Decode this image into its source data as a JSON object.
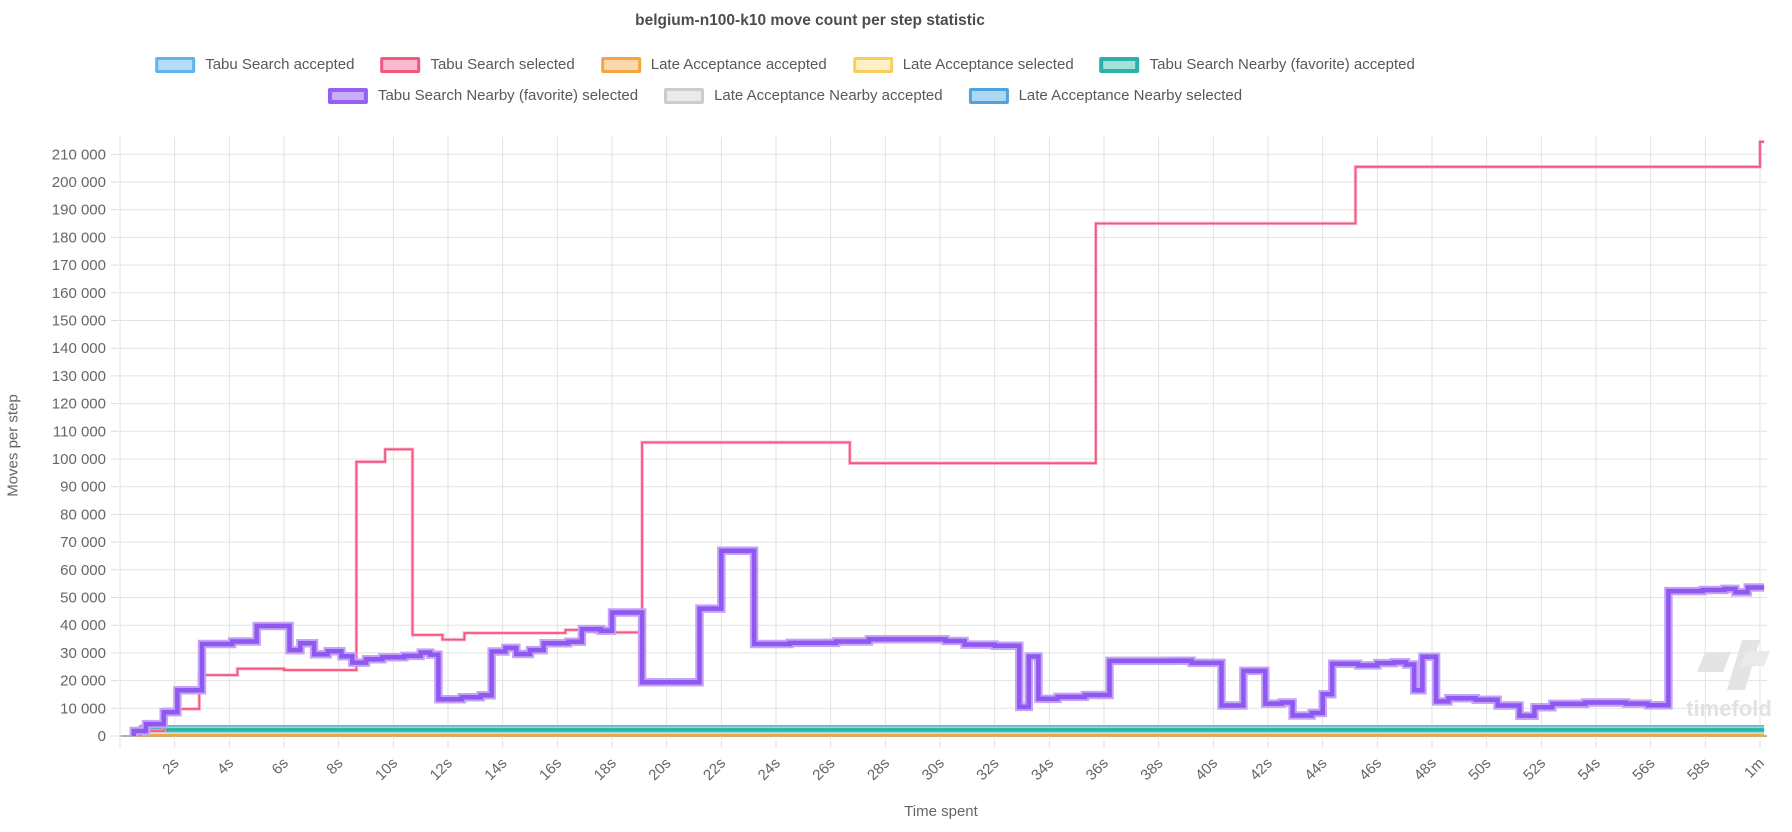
{
  "title": "belgium-n100-k10 move count per step statistic",
  "watermark": "timefold",
  "legend": [
    {
      "label": "Tabu Search accepted",
      "border": "#5fb4ea",
      "fill": "#b4dcf6",
      "lw": 3,
      "row": 1
    },
    {
      "label": "Tabu Search selected",
      "border": "#f4567e",
      "fill": "#f9bccf",
      "lw": 3,
      "row": 1
    },
    {
      "label": "Late Acceptance accepted",
      "border": "#f5a53f",
      "fill": "#fbd9ae",
      "lw": 3,
      "row": 1
    },
    {
      "label": "Late Acceptance selected",
      "border": "#f6cf5c",
      "fill": "#fdf0c6",
      "lw": 3,
      "row": 1
    },
    {
      "label": "Tabu Search Nearby (favorite) accepted",
      "border": "#2bb2a6",
      "fill": "#a3e2db",
      "lw": 4,
      "row": 1
    },
    {
      "label": "Tabu Search Nearby (favorite) selected",
      "border": "#9561f2",
      "fill": "#c9adf8",
      "lw": 4,
      "row": 2
    },
    {
      "label": "Late Acceptance Nearby accepted",
      "border": "#cccccc",
      "fill": "#ebebeb",
      "lw": 3,
      "row": 2
    },
    {
      "label": "Late Acceptance Nearby selected",
      "border": "#53a2e0",
      "fill": "#aed7f3",
      "lw": 3,
      "row": 2
    }
  ],
  "axes": {
    "y_title": "Moves per step",
    "x_title": "Time spent",
    "y_tick_values": [
      0,
      10000,
      20000,
      30000,
      40000,
      50000,
      60000,
      70000,
      80000,
      90000,
      100000,
      110000,
      120000,
      130000,
      140000,
      150000,
      160000,
      170000,
      180000,
      190000,
      200000,
      210000
    ],
    "y_tick_labels": [
      "0",
      "10 000",
      "20 000",
      "30 000",
      "40 000",
      "50 000",
      "60 000",
      "70 000",
      "80 000",
      "90 000",
      "100 000",
      "110 000",
      "120 000",
      "130 000",
      "140 000",
      "150 000",
      "160 000",
      "170 000",
      "180 000",
      "190 000",
      "200 000",
      "210 000"
    ],
    "x_tick_values": [
      2,
      4,
      6,
      8,
      10,
      12,
      14,
      16,
      18,
      20,
      22,
      24,
      26,
      28,
      30,
      32,
      34,
      36,
      38,
      40,
      42,
      44,
      46,
      48,
      50,
      52,
      54,
      56,
      58,
      60
    ],
    "x_tick_labels": [
      "2s",
      "4s",
      "6s",
      "8s",
      "10s",
      "12s",
      "14s",
      "16s",
      "18s",
      "20s",
      "22s",
      "24s",
      "26s",
      "28s",
      "30s",
      "32s",
      "34s",
      "36s",
      "38s",
      "40s",
      "42s",
      "44s",
      "46s",
      "48s",
      "50s",
      "52s",
      "54s",
      "56s",
      "58s",
      "1m"
    ]
  },
  "chart_data": {
    "type": "line",
    "step": true,
    "title": "belgium-n100-k10 move count per step statistic",
    "xlabel": "Time spent",
    "ylabel": "Moves per step",
    "x_unit": "seconds",
    "xlim": [
      0,
      60.15
    ],
    "ylim": [
      0,
      216000
    ],
    "grid": true,
    "legend_position": "top",
    "series": [
      {
        "name": "Late Acceptance Nearby accepted",
        "color": "#cfcfcf",
        "width": 2,
        "points": [
          [
            0.75,
            350
          ]
        ]
      },
      {
        "name": "Late Acceptance selected",
        "color": "#f6cf5c",
        "width": 2,
        "points": [
          [
            0.55,
            430
          ]
        ]
      },
      {
        "name": "Late Acceptance accepted",
        "color": "#f5a53f",
        "width": 2.5,
        "points": [
          [
            0.55,
            250
          ]
        ]
      },
      {
        "name": "Tabu Search accepted",
        "color": "#5fb4ea",
        "width": 2.5,
        "points": [
          [
            0.45,
            2000
          ]
        ]
      },
      {
        "name": "Late Acceptance Nearby selected",
        "color": "#53a2e0",
        "width": 3,
        "points": [
          [
            0.75,
            3400
          ]
        ]
      },
      {
        "name": "Tabu Search Nearby (favorite) accepted",
        "color": "#2bb2a6",
        "width": 3.5,
        "halo_color": "#8fd9d2",
        "halo_width": 7,
        "points": [
          [
            0.75,
            2200
          ]
        ]
      },
      {
        "name": "Tabu Search selected",
        "color": "#f4567e",
        "width": 1.8,
        "halo_color": "rgba(248,184,205,0.85)",
        "halo_width": 3.6,
        "points": [
          [
            0.55,
            1800
          ],
          [
            1.6,
            9800
          ],
          [
            2.9,
            22000
          ],
          [
            4.3,
            24300
          ],
          [
            6.0,
            23800
          ],
          [
            8.65,
            99000
          ],
          [
            9.7,
            103500
          ],
          [
            10.7,
            36500
          ],
          [
            11.8,
            34800
          ],
          [
            12.6,
            37200
          ],
          [
            16.3,
            38300
          ],
          [
            17.4,
            37400
          ],
          [
            19.1,
            106000
          ],
          [
            26.7,
            98500
          ],
          [
            35.7,
            185000
          ],
          [
            45.2,
            205500
          ],
          [
            60,
            214500
          ]
        ]
      },
      {
        "name": "Tabu Search Nearby (favorite) selected",
        "color": "#8f58f0",
        "width": 4.5,
        "halo_color": "#c3a4f7",
        "halo_width": 8.5,
        "points": [
          [
            0.5,
            1800
          ],
          [
            0.95,
            4300
          ],
          [
            1.6,
            8600
          ],
          [
            2.1,
            16500
          ],
          [
            3.0,
            33200
          ],
          [
            4.1,
            34100
          ],
          [
            5.0,
            39700
          ],
          [
            6.2,
            31000
          ],
          [
            6.6,
            33500
          ],
          [
            7.1,
            29500
          ],
          [
            7.6,
            30600
          ],
          [
            8.1,
            28800
          ],
          [
            8.5,
            26500
          ],
          [
            9.0,
            27700
          ],
          [
            9.6,
            28400
          ],
          [
            10.4,
            28900
          ],
          [
            11.0,
            30100
          ],
          [
            11.35,
            29400
          ],
          [
            11.65,
            13300
          ],
          [
            12.5,
            14000
          ],
          [
            13.2,
            14700
          ],
          [
            13.6,
            30500
          ],
          [
            14.1,
            31800
          ],
          [
            14.5,
            29600
          ],
          [
            15.0,
            31000
          ],
          [
            15.5,
            33500
          ],
          [
            16.4,
            34000
          ],
          [
            16.9,
            38600
          ],
          [
            17.6,
            38000
          ],
          [
            18.0,
            44600
          ],
          [
            19.1,
            19400
          ],
          [
            21.2,
            46000
          ],
          [
            22.0,
            66900
          ],
          [
            23.2,
            33200
          ],
          [
            24.5,
            33600
          ],
          [
            26.2,
            34100
          ],
          [
            27.4,
            34900
          ],
          [
            29.2,
            34900
          ],
          [
            30.2,
            34300
          ],
          [
            30.9,
            33000
          ],
          [
            32.0,
            32600
          ],
          [
            32.9,
            10500
          ],
          [
            33.25,
            28700
          ],
          [
            33.6,
            13400
          ],
          [
            34.3,
            14100
          ],
          [
            35.3,
            14800
          ],
          [
            36.2,
            27100
          ],
          [
            38.4,
            27200
          ],
          [
            39.2,
            26400
          ],
          [
            40.3,
            11000
          ],
          [
            41.1,
            23500
          ],
          [
            41.9,
            11700
          ],
          [
            42.5,
            12100
          ],
          [
            42.9,
            7400
          ],
          [
            43.6,
            8300
          ],
          [
            44.0,
            15100
          ],
          [
            44.35,
            26100
          ],
          [
            45.3,
            25500
          ],
          [
            46.0,
            26300
          ],
          [
            46.6,
            26600
          ],
          [
            47.05,
            25800
          ],
          [
            47.35,
            16500
          ],
          [
            47.65,
            28600
          ],
          [
            48.15,
            12500
          ],
          [
            48.6,
            13600
          ],
          [
            49.6,
            13100
          ],
          [
            50.4,
            11000
          ],
          [
            51.2,
            7300
          ],
          [
            51.75,
            10400
          ],
          [
            52.4,
            11600
          ],
          [
            53.6,
            12100
          ],
          [
            55.1,
            11700
          ],
          [
            55.9,
            11100
          ],
          [
            56.65,
            52300
          ],
          [
            57.9,
            52700
          ],
          [
            58.7,
            53100
          ],
          [
            59.1,
            51900
          ],
          [
            59.55,
            53600
          ]
        ]
      }
    ]
  }
}
